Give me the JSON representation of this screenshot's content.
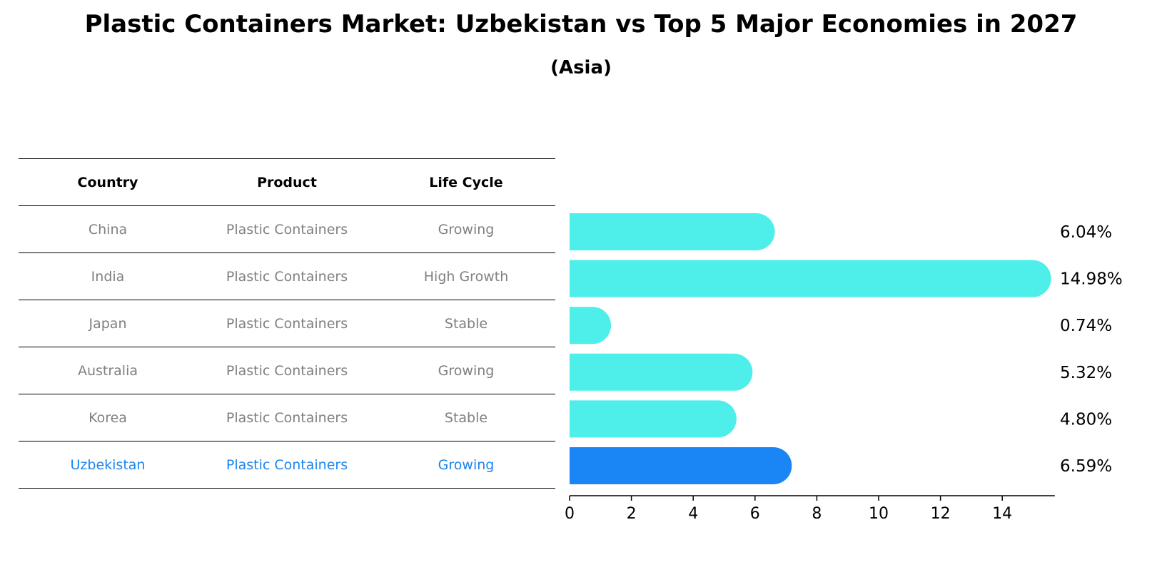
{
  "title": "Plastic Containers Market: Uzbekistan vs Top 5 Major Economies in 2027",
  "subtitle": "(Asia)",
  "table": {
    "headers": [
      "Country",
      "Product",
      "Life Cycle"
    ],
    "rows": [
      [
        "China",
        "Plastic Containers",
        "Growing"
      ],
      [
        "India",
        "Plastic Containers",
        "High Growth"
      ],
      [
        "Japan",
        "Plastic Containers",
        "Stable"
      ],
      [
        "Australia",
        "Plastic Containers",
        "Growing"
      ],
      [
        "Korea",
        "Plastic Containers",
        "Stable"
      ],
      [
        "Uzbekistan",
        "Plastic Containers",
        "Growing"
      ]
    ],
    "highlight_row": 5
  },
  "colors": {
    "bar": "#4eeeea",
    "highlight_bar": "#1a85f5",
    "muted_text": "#808080",
    "highlight_text": "#1a85ee"
  },
  "chart_data": {
    "type": "bar",
    "orientation": "horizontal",
    "categories": [
      "China",
      "India",
      "Japan",
      "Australia",
      "Korea",
      "Uzbekistan"
    ],
    "values": [
      6.04,
      14.98,
      0.74,
      5.32,
      4.8,
      6.59
    ],
    "value_labels": [
      "6.04%",
      "14.98%",
      "0.74%",
      "5.32%",
      "4.80%",
      "6.59%"
    ],
    "highlight_index": 5,
    "xlim": [
      0,
      15.7
    ],
    "xticks": [
      0,
      2,
      4,
      6,
      8,
      10,
      12,
      14
    ]
  }
}
